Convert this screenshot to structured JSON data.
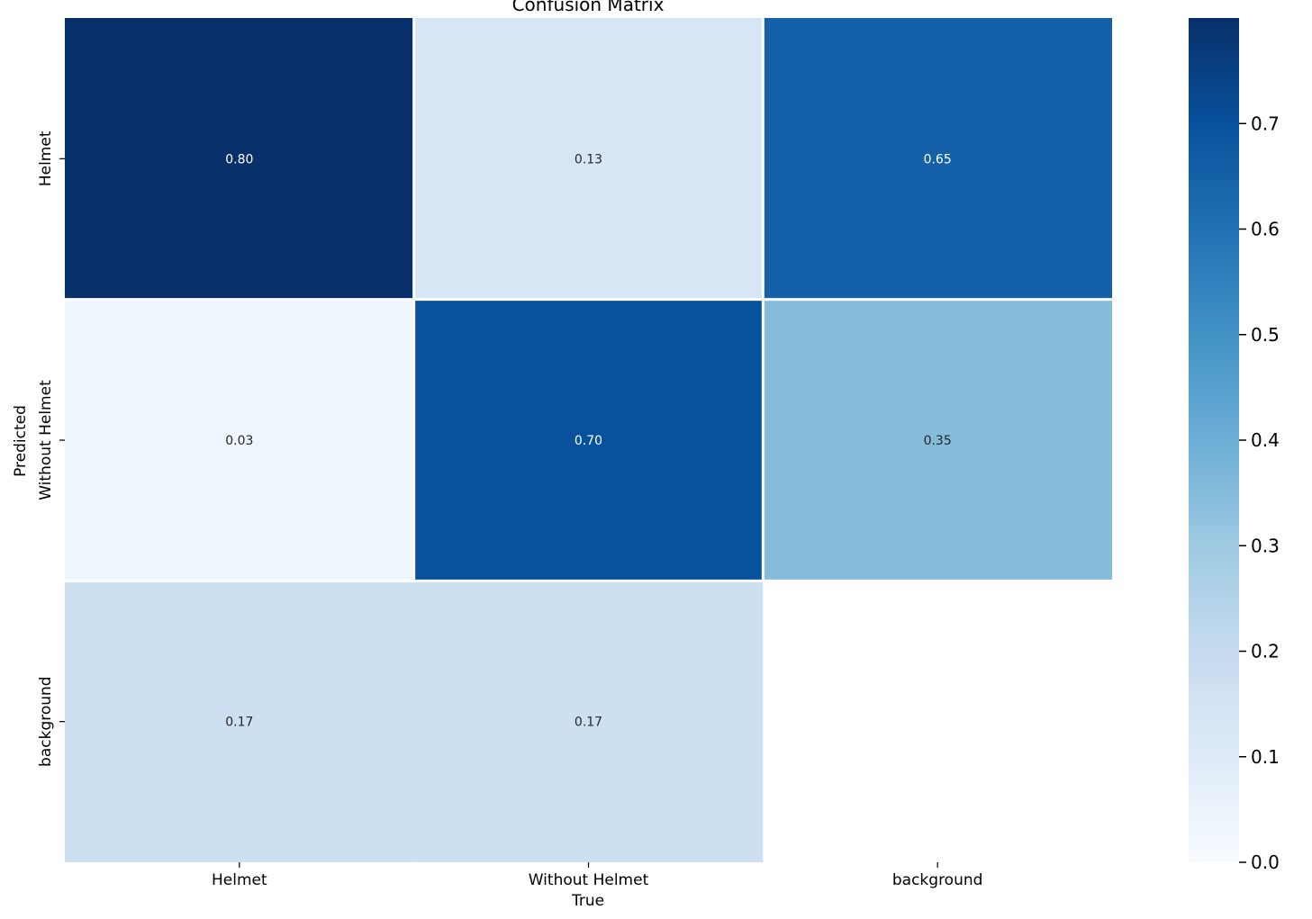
{
  "chart_data": {
    "type": "heatmap",
    "title": "Confusion Matrix",
    "xlabel": "True",
    "ylabel": "Predicted",
    "x_categories": [
      "Helmet",
      "Without Helmet",
      "background"
    ],
    "y_categories": [
      "Helmet",
      "Without Helmet",
      "background"
    ],
    "values": [
      [
        0.8,
        0.13,
        0.65
      ],
      [
        0.03,
        0.7,
        0.35
      ],
      [
        0.17,
        0.17,
        null
      ]
    ],
    "cell_labels": [
      [
        "0.80",
        "0.13",
        "0.65"
      ],
      [
        "0.03",
        "0.70",
        "0.35"
      ],
      [
        "0.17",
        "0.17",
        ""
      ]
    ],
    "colormap": "Blues",
    "colorbar": {
      "range": [
        0.0,
        0.8
      ],
      "ticks": [
        0.0,
        0.1,
        0.2,
        0.3,
        0.4,
        0.5,
        0.6,
        0.7
      ],
      "tick_labels": [
        "0.0",
        "0.1",
        "0.2",
        "0.3",
        "0.4",
        "0.5",
        "0.6",
        "0.7"
      ]
    }
  }
}
